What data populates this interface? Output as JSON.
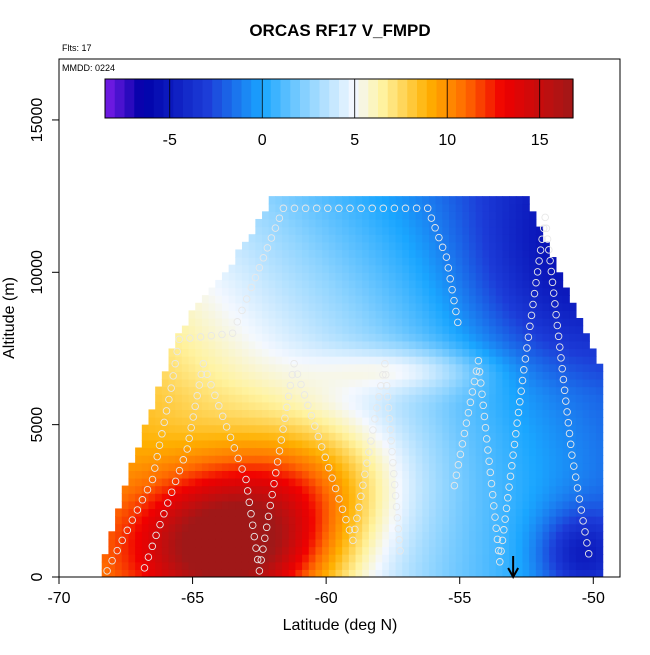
{
  "chart_data": {
    "type": "heatmap",
    "title": "ORCAS RF17 V_FMPD",
    "annotations": {
      "flights": "Flts: 17",
      "mmdd": "MMDD: 0224"
    },
    "xlabel": "Latitude (deg N)",
    "ylabel": "Altitude (m)",
    "xlim": [
      -70,
      -49
    ],
    "ylim": [
      0,
      17000
    ],
    "x_ticks": [
      -70,
      -65,
      -60,
      -55,
      -50
    ],
    "x_tick_labels": [
      "-70",
      "-65",
      "-60",
      "-55",
      "-50"
    ],
    "y_ticks": [
      0,
      5000,
      10000,
      15000
    ],
    "y_tick_labels": [
      "0",
      "5000",
      "10000",
      "15000"
    ],
    "colorbar": {
      "range": [
        -8.5,
        16.8
      ],
      "ticks": [
        -5,
        0,
        5,
        10,
        15
      ],
      "tick_labels": [
        "-5",
        "0",
        "5",
        "10",
        "15"
      ],
      "stops": [
        {
          "value": -8.5,
          "color": "#7b1de8"
        },
        {
          "value": -6.5,
          "color": "#0000a8"
        },
        {
          "value": -3.0,
          "color": "#1c3cd8"
        },
        {
          "value": 0.0,
          "color": "#1aa6ff"
        },
        {
          "value": 2.5,
          "color": "#8fd4ff"
        },
        {
          "value": 5.0,
          "color": "#f4f8ff"
        },
        {
          "value": 6.5,
          "color": "#fff3a0"
        },
        {
          "value": 9.0,
          "color": "#ffb000"
        },
        {
          "value": 11.0,
          "color": "#ff6a00"
        },
        {
          "value": 13.0,
          "color": "#f00000"
        },
        {
          "value": 16.8,
          "color": "#a01818"
        }
      ]
    },
    "field": {
      "lat_range": [
        -68.4,
        -49.9
      ],
      "alt_range": [
        0,
        12300
      ],
      "description_points": [
        {
          "lat": -64.0,
          "alt": 800,
          "value": 13.5
        },
        {
          "lat": -62.0,
          "alt": 1500,
          "value": 12.0
        },
        {
          "lat": -60.0,
          "alt": 2500,
          "value": 7.0
        },
        {
          "lat": -58.0,
          "alt": 7000,
          "value": 3.5
        },
        {
          "lat": -63.0,
          "alt": 9500,
          "value": 0.5
        },
        {
          "lat": -53.0,
          "alt": 4000,
          "value": -3.5
        },
        {
          "lat": -50.5,
          "alt": 800,
          "value": -7.0
        },
        {
          "lat": -51.0,
          "alt": 11500,
          "value": -5.5
        }
      ]
    },
    "marker": {
      "lat": -53.0,
      "label": "arrow"
    },
    "grid": false,
    "legend": "colorbar top inside plot"
  }
}
